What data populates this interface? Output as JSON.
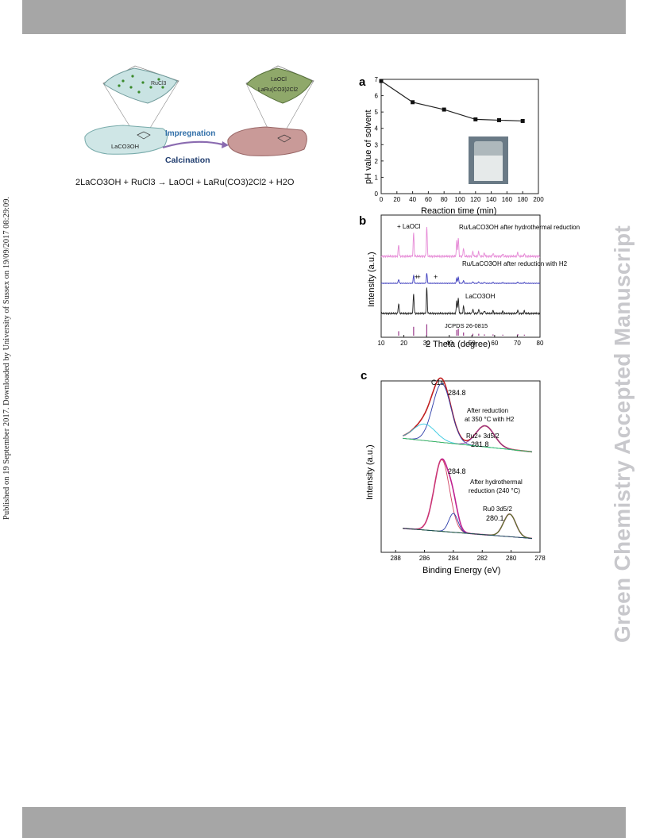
{
  "page": {
    "side_note": "Published on 19 September 2017. Downloaded by University of Sussex on 19/09/2017 08:29:09.",
    "watermark": "Green Chemistry Accepted Manuscript"
  },
  "scheme": {
    "rucl3_label": "RuCl3",
    "support_label": "LaCO3OH",
    "product_label_1": "LaOCl",
    "product_label_2": "LaRu(CO3)2Cl2",
    "step_1": "Impregnation",
    "step_2": "Calcination",
    "equation": "2LaCO3OH + RuCl3 → LaOCl + LaRu(CO3)2Cl2 + H2O"
  },
  "chart_data": [
    {
      "type": "line",
      "panel_label": "a",
      "xlabel": "Reaction time (min)",
      "ylabel": "pH value of solvent",
      "xlim": [
        0,
        200
      ],
      "ylim": [
        0,
        7
      ],
      "xticks": [
        0,
        20,
        40,
        60,
        80,
        100,
        120,
        140,
        160,
        180,
        200
      ],
      "yticks": [
        0,
        1,
        2,
        3,
        4,
        5,
        6,
        7
      ],
      "x": [
        0,
        40,
        80,
        120,
        150,
        180
      ],
      "y": [
        6.9,
        5.6,
        5.15,
        4.55,
        4.5,
        4.45
      ],
      "inset": "photo of beaker"
    },
    {
      "type": "line",
      "panel_label": "b",
      "xlabel": "2 Theta (degree)",
      "ylabel": "Intensity (a.u.)",
      "xlim": [
        10,
        80
      ],
      "xticks": [
        10,
        20,
        30,
        40,
        50,
        60,
        70,
        80
      ],
      "series": [
        {
          "name": "Ru/LaCO3OH after hydrothermal reduction",
          "color": "#e68ad6"
        },
        {
          "name": "Ru/LaCO3OH after reduction with H2",
          "color": "#3e3ebe"
        },
        {
          "name": "LaCO3OH",
          "color": "#222222"
        },
        {
          "name": "JCPDS 26-0815",
          "color": "#9a3a8a"
        }
      ],
      "peaks_2theta": [
        17.7,
        24.3,
        30.1,
        43.3,
        44.0,
        46.3,
        50.4,
        53.0,
        55.5,
        59.3,
        63.6,
        70.2,
        73.1
      ],
      "peak_heights": [
        0.35,
        0.7,
        0.9,
        0.45,
        0.55,
        0.25,
        0.15,
        0.15,
        0.1,
        0.1,
        0.08,
        0.12,
        0.08
      ],
      "marker_legend": "+ LaOCl",
      "laocl_marks_2theta": [
        25.5,
        26.5,
        34.0
      ]
    },
    {
      "type": "line",
      "panel_label": "c",
      "xlabel": "Binding Energy (eV)",
      "ylabel": "Intensity (a.u.)",
      "xlim": [
        289,
        278
      ],
      "xticks": [
        288,
        286,
        284,
        282,
        280,
        278
      ],
      "upper": {
        "note_1": "After reduction",
        "note_2": "at 350 °C with H2",
        "c1s_label": "C1s",
        "c1s_peak": 284.8,
        "ru_label": "Ru2+ 3d5/2",
        "ru_peak": 281.8
      },
      "lower": {
        "note_1": "After hydrothermal",
        "note_2": "reduction (240 °C)",
        "c1s_peak": 284.8,
        "ru_label": "Ru0 3d5/2",
        "ru_peak": 280.1
      }
    }
  ]
}
